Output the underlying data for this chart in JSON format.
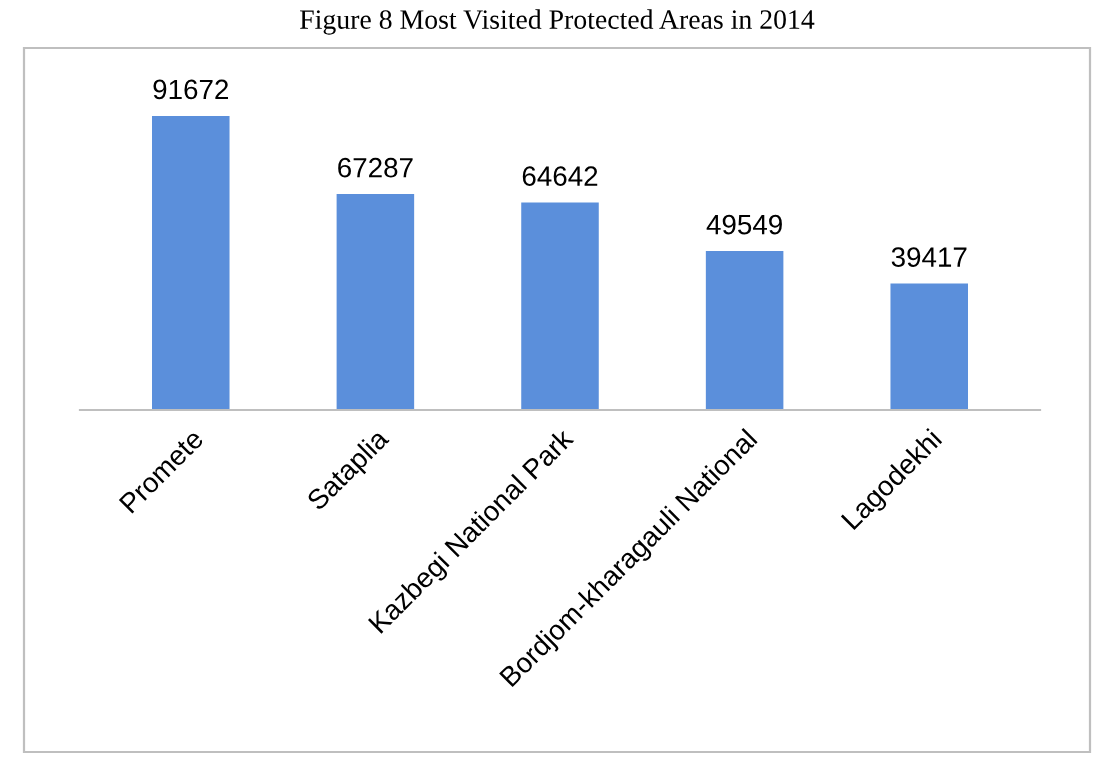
{
  "chart_data": {
    "type": "bar",
    "title": "Figure 8 Most Visited Protected Areas in 2014",
    "categories": [
      "Promete",
      "Sataplia",
      "Kazbegi National Park",
      "Bordjom-kharagauli National",
      "Lagodekhi"
    ],
    "values": [
      91672,
      67287,
      64642,
      49549,
      39417
    ],
    "color": "#5b8fdb",
    "data_labels": true,
    "grid": false,
    "legend": false
  }
}
